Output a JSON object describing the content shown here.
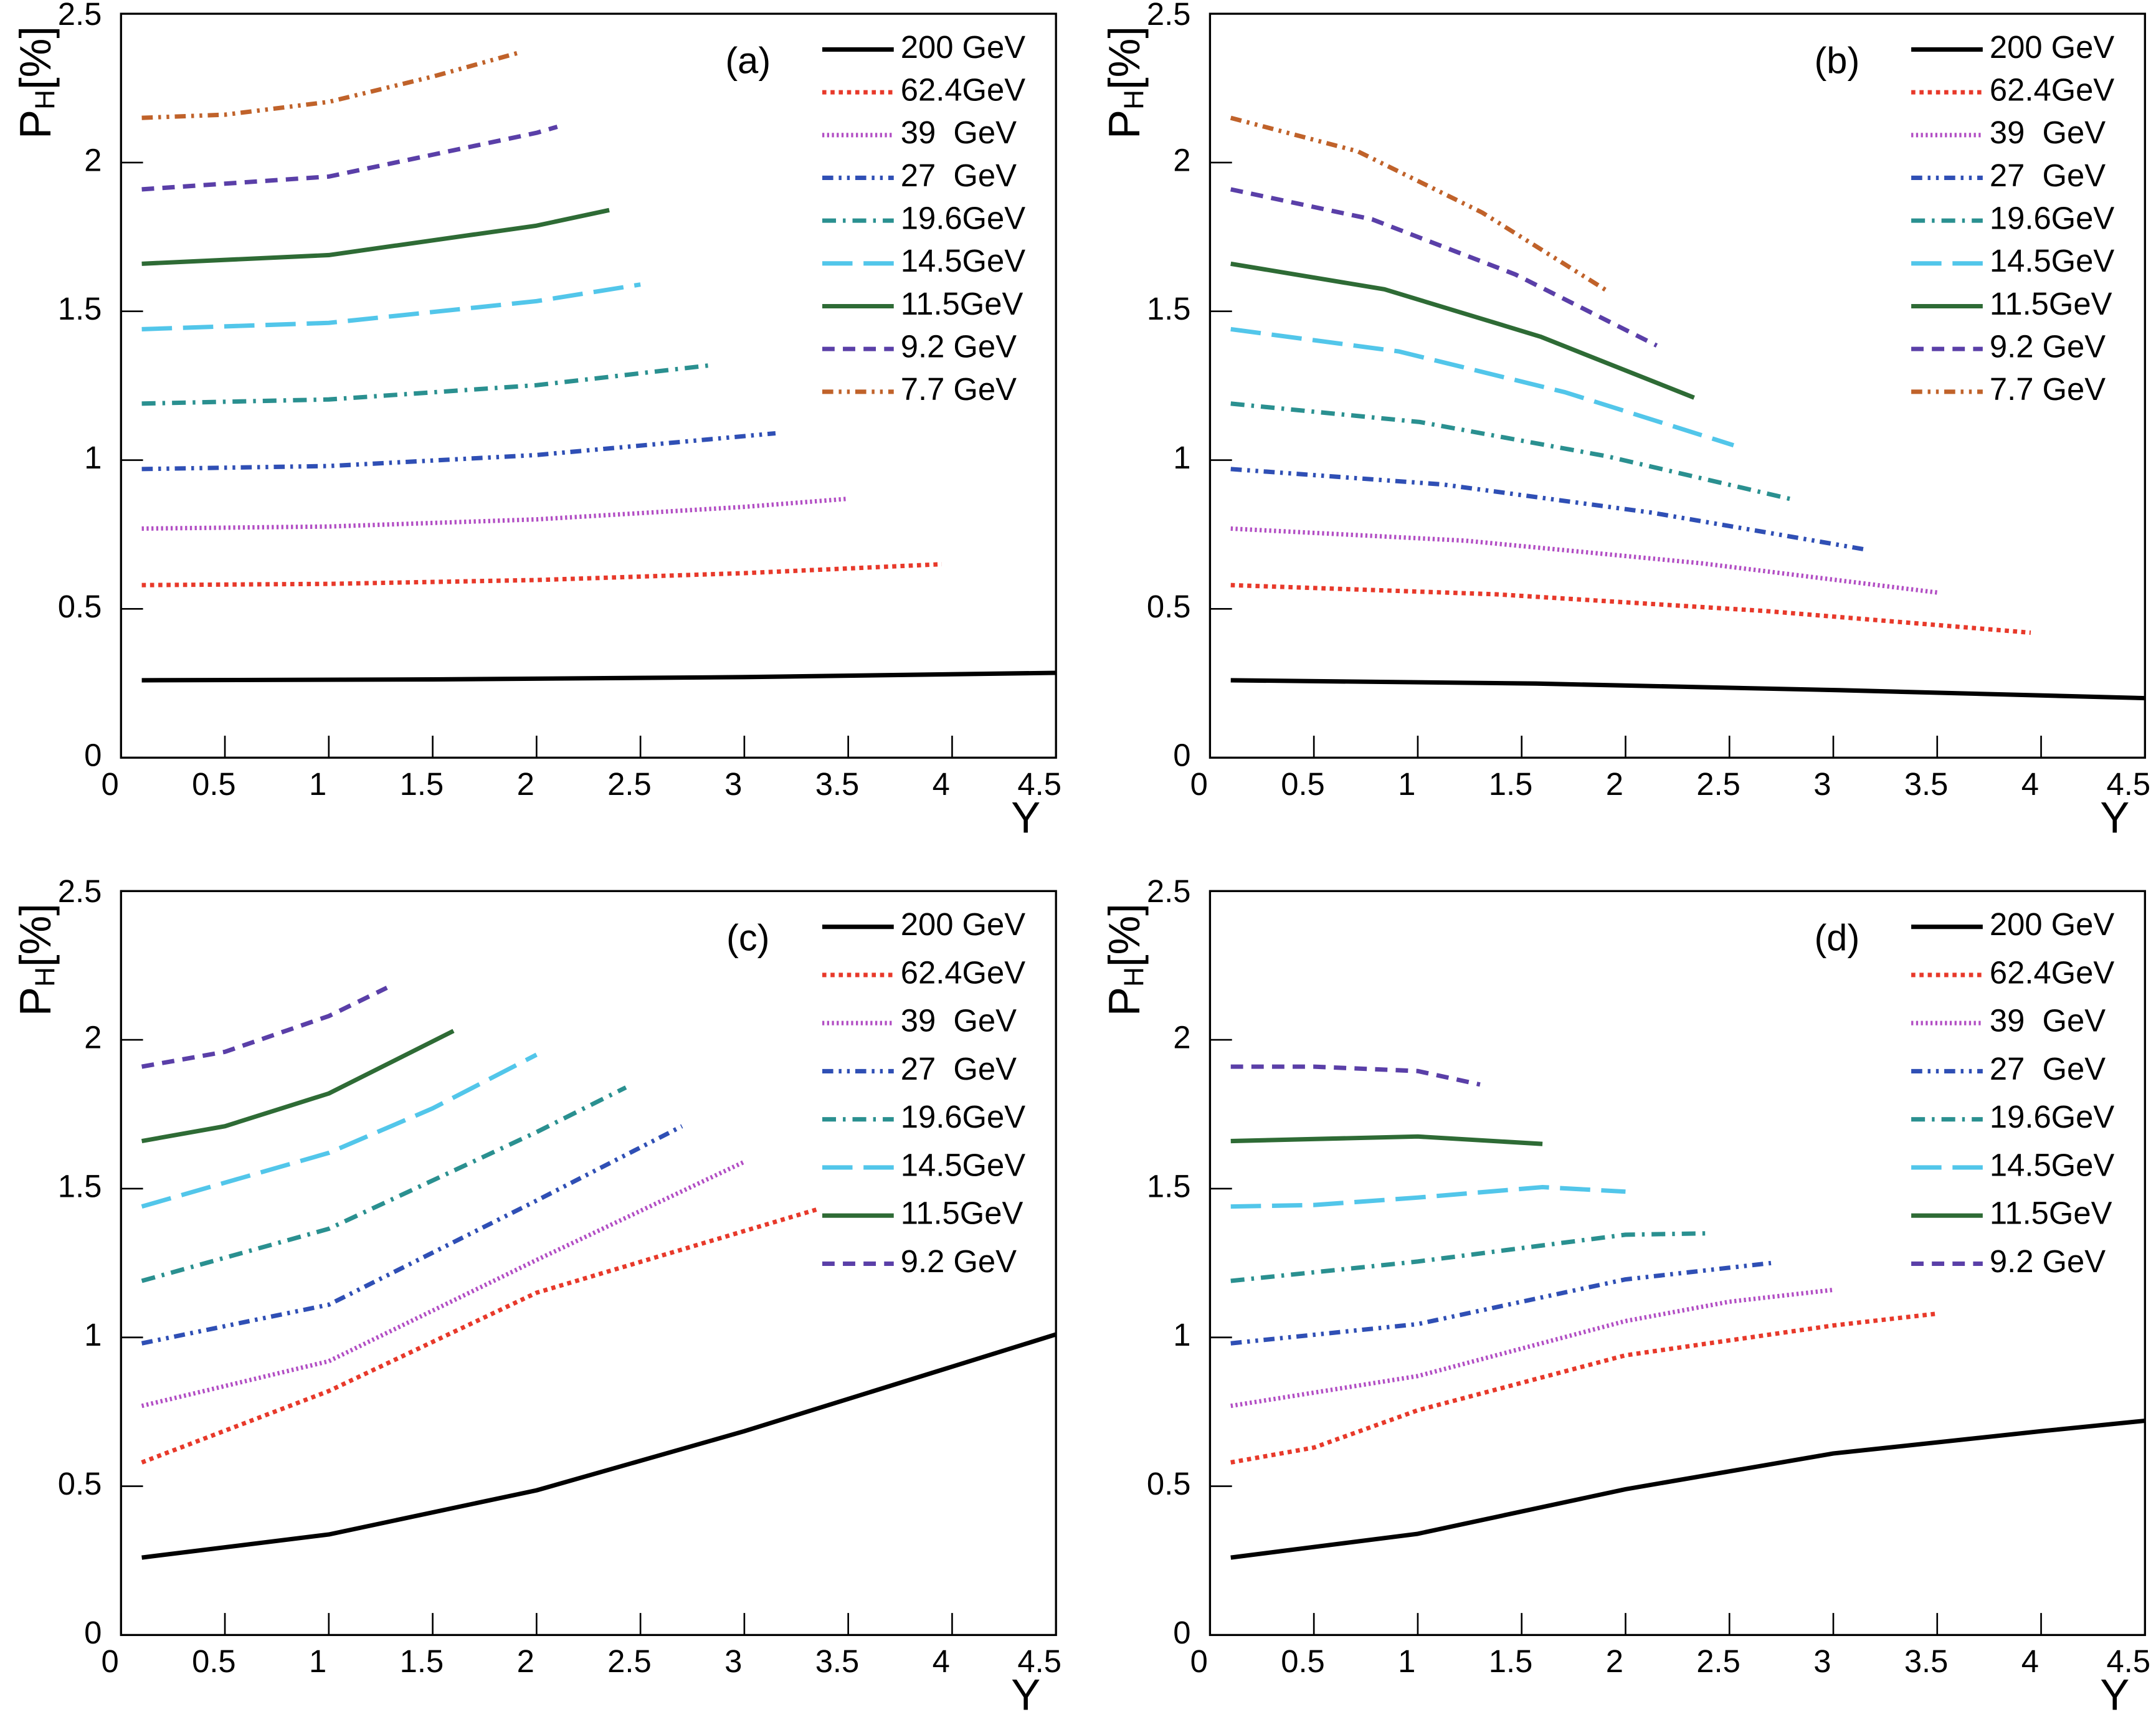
{
  "chart_data": [
    {
      "type": "line",
      "annotation": "(a)",
      "x_label": "Y",
      "y_label": {
        "main": "P",
        "sub": "H",
        "unit": "[%]"
      },
      "xlim": [
        0,
        4.5
      ],
      "ylim": [
        0,
        2.5
      ],
      "xticks": [
        0,
        0.5,
        1,
        1.5,
        2,
        2.5,
        3,
        3.5,
        4,
        4.5
      ],
      "yticks": [
        0,
        0.5,
        1,
        1.5,
        2,
        2.5
      ],
      "series": [
        {
          "name": "200 GeV",
          "color": "#000000",
          "dash": "solid",
          "x": [
            0.1,
            1.5,
            3,
            4.5
          ],
          "values": [
            0.26,
            0.263,
            0.271,
            0.285
          ]
        },
        {
          "name": "62.4GeV",
          "color": "#e8392a",
          "dash": "dotted",
          "x": [
            0.1,
            1,
            2,
            3,
            3.95
          ],
          "values": [
            0.58,
            0.584,
            0.597,
            0.62,
            0.65
          ]
        },
        {
          "name": "39  GeV",
          "color": "#b24ec4",
          "dash": "fine-dotted",
          "x": [
            0.1,
            1,
            2,
            3,
            3.5
          ],
          "values": [
            0.77,
            0.777,
            0.801,
            0.843,
            0.87
          ]
        },
        {
          "name": "27  GeV",
          "color": "#2f4fb5",
          "dash": "dash-dot-dot",
          "x": [
            0.1,
            1,
            2,
            3.15
          ],
          "values": [
            0.97,
            0.98,
            1.017,
            1.09
          ]
        },
        {
          "name": "19.6GeV",
          "color": "#2a9090",
          "dash": "dash-dot",
          "x": [
            0.1,
            1,
            2,
            2.85
          ],
          "values": [
            1.19,
            1.204,
            1.252,
            1.32
          ]
        },
        {
          "name": "14.5GeV",
          "color": "#52c6ea",
          "dash": "long-dash",
          "x": [
            0.1,
            1,
            2,
            2.5
          ],
          "values": [
            1.44,
            1.461,
            1.534,
            1.59
          ]
        },
        {
          "name": "11.5GeV",
          "color": "#2e6b35",
          "dash": "solid",
          "x": [
            0.1,
            1,
            2,
            2.35
          ],
          "values": [
            1.66,
            1.689,
            1.788,
            1.84
          ]
        },
        {
          "name": "9.2 GeV",
          "color": "#5a3fa8",
          "dash": "dashed",
          "x": [
            0.1,
            1,
            2,
            2.1
          ],
          "values": [
            1.91,
            1.953,
            2.1,
            2.12
          ]
        },
        {
          "name": "7.7 GeV",
          "color": "#c0622a",
          "dash": "dash-dot-dot",
          "x": [
            0.1,
            0.5,
            1,
            1.5,
            1.92
          ],
          "values": [
            2.15,
            2.161,
            2.204,
            2.289,
            2.37
          ]
        }
      ]
    },
    {
      "type": "line",
      "annotation": "(b)",
      "x_label": "Y",
      "y_label": {
        "main": "P",
        "sub": "H",
        "unit": "[%]"
      },
      "xlim": [
        0,
        4.5
      ],
      "ylim": [
        0,
        2.5
      ],
      "xticks": [
        0,
        0.5,
        1,
        1.5,
        2,
        2.5,
        3,
        3.5,
        4,
        4.5
      ],
      "yticks": [
        0,
        0.5,
        1,
        1.5,
        2,
        2.5
      ],
      "series": [
        {
          "name": "200 GeV",
          "color": "#000000",
          "dash": "solid",
          "x": [
            0.1,
            1.57,
            3.03,
            4.5
          ],
          "values": [
            0.26,
            0.249,
            0.227,
            0.2
          ]
        },
        {
          "name": "62.4GeV",
          "color": "#e8392a",
          "dash": "dotted",
          "x": [
            0.1,
            1.38,
            2.67,
            3.95
          ],
          "values": [
            0.58,
            0.549,
            0.493,
            0.42
          ]
        },
        {
          "name": "39  GeV",
          "color": "#b24ec4",
          "dash": "fine-dotted",
          "x": [
            0.1,
            1.23,
            2.37,
            3.5
          ],
          "values": [
            0.77,
            0.729,
            0.653,
            0.555
          ]
        },
        {
          "name": "27  GeV",
          "color": "#2f4fb5",
          "dash": "dash-dot-dot",
          "x": [
            0.1,
            1.12,
            2.13,
            3.15
          ],
          "values": [
            0.97,
            0.918,
            0.823,
            0.7
          ]
        },
        {
          "name": "19.6GeV",
          "color": "#2a9090",
          "dash": "dash-dot",
          "x": [
            0.1,
            1.01,
            1.91,
            2.82
          ],
          "values": [
            1.19,
            1.128,
            1.013,
            0.865
          ]
        },
        {
          "name": "14.5GeV",
          "color": "#52c6ea",
          "dash": "long-dash",
          "x": [
            0.1,
            0.91,
            1.71,
            2.52
          ],
          "values": [
            1.44,
            1.365,
            1.228,
            1.05
          ]
        },
        {
          "name": "11.5GeV",
          "color": "#2e6b35",
          "dash": "solid",
          "x": [
            0.1,
            0.84,
            1.59,
            2.33
          ],
          "values": [
            1.66,
            1.574,
            1.415,
            1.21
          ]
        },
        {
          "name": "9.2 GeV",
          "color": "#5a3fa8",
          "dash": "dashed",
          "x": [
            0.1,
            0.78,
            1.47,
            2.15
          ],
          "values": [
            1.91,
            1.809,
            1.624,
            1.385
          ]
        },
        {
          "name": "7.7 GeV",
          "color": "#c0622a",
          "dash": "dash-dot-dot",
          "x": [
            0.1,
            0.71,
            1.31,
            1.92
          ],
          "values": [
            2.15,
            2.038,
            1.832,
            1.565
          ]
        }
      ]
    },
    {
      "type": "line",
      "annotation": "(c)",
      "x_label": "Y",
      "y_label": {
        "main": "P",
        "sub": "H",
        "unit": "[%]"
      },
      "xlim": [
        0,
        4.5
      ],
      "ylim": [
        0,
        2.5
      ],
      "xticks": [
        0,
        0.5,
        1,
        1.5,
        2,
        2.5,
        3,
        3.5,
        4,
        4.5
      ],
      "yticks": [
        0,
        0.5,
        1,
        1.5,
        2,
        2.5
      ],
      "series": [
        {
          "name": "200 GeV",
          "color": "#000000",
          "dash": "solid",
          "x": [
            0.1,
            1,
            2,
            3,
            4.5
          ],
          "values": [
            0.26,
            0.338,
            0.486,
            0.685,
            1.01
          ]
        },
        {
          "name": "62.4GeV",
          "color": "#e8392a",
          "dash": "dotted",
          "x": [
            0.1,
            1,
            2,
            3.35
          ],
          "values": [
            0.58,
            0.82,
            1.15,
            1.43
          ]
        },
        {
          "name": "39  GeV",
          "color": "#b24ec4",
          "dash": "fine-dotted",
          "x": [
            0.1,
            1,
            2,
            3
          ],
          "values": [
            0.77,
            0.92,
            1.26,
            1.59
          ]
        },
        {
          "name": "27  GeV",
          "color": "#2f4fb5",
          "dash": "dash-dot-dot",
          "x": [
            0.1,
            1,
            2,
            2.7
          ],
          "values": [
            0.98,
            1.11,
            1.46,
            1.71
          ]
        },
        {
          "name": "19.6GeV",
          "color": "#2a9090",
          "dash": "dash-dot",
          "x": [
            0.1,
            1,
            2,
            2.43
          ],
          "values": [
            1.19,
            1.365,
            1.69,
            1.84
          ]
        },
        {
          "name": "14.5GeV",
          "color": "#52c6ea",
          "dash": "long-dash",
          "x": [
            0.1,
            1,
            1.5,
            2
          ],
          "values": [
            1.44,
            1.62,
            1.77,
            1.95
          ]
        },
        {
          "name": "11.5GeV",
          "color": "#2e6b35",
          "dash": "solid",
          "x": [
            0.1,
            0.5,
            1,
            1.6
          ],
          "values": [
            1.66,
            1.71,
            1.82,
            2.03
          ]
        },
        {
          "name": "9.2 GeV",
          "color": "#5a3fa8",
          "dash": "dashed",
          "x": [
            0.1,
            0.5,
            1,
            1.28
          ],
          "values": [
            1.91,
            1.96,
            2.08,
            2.175
          ]
        }
      ]
    },
    {
      "type": "line",
      "annotation": "(d)",
      "x_label": "Y",
      "y_label": {
        "main": "P",
        "sub": "H",
        "unit": "[%]"
      },
      "xlim": [
        0,
        4.5
      ],
      "ylim": [
        0,
        2.5
      ],
      "xticks": [
        0,
        0.5,
        1,
        1.5,
        2,
        2.5,
        3,
        3.5,
        4,
        4.5
      ],
      "yticks": [
        0,
        0.5,
        1,
        1.5,
        2,
        2.5
      ],
      "series": [
        {
          "name": "200 GeV",
          "color": "#000000",
          "dash": "solid",
          "x": [
            0.1,
            1,
            2,
            3,
            4,
            4.5
          ],
          "values": [
            0.26,
            0.34,
            0.49,
            0.61,
            0.685,
            0.72
          ]
        },
        {
          "name": "62.4GeV",
          "color": "#e8392a",
          "dash": "dotted",
          "x": [
            0.1,
            0.5,
            1,
            2,
            3,
            3.5
          ],
          "values": [
            0.58,
            0.63,
            0.755,
            0.94,
            1.04,
            1.08
          ]
        },
        {
          "name": "39  GeV",
          "color": "#b24ec4",
          "dash": "fine-dotted",
          "x": [
            0.1,
            1,
            2,
            2.5,
            3
          ],
          "values": [
            0.77,
            0.87,
            1.055,
            1.12,
            1.16
          ]
        },
        {
          "name": "27  GeV",
          "color": "#2f4fb5",
          "dash": "dash-dot-dot",
          "x": [
            0.1,
            1,
            2,
            2.7
          ],
          "values": [
            0.98,
            1.045,
            1.195,
            1.25
          ]
        },
        {
          "name": "19.6GeV",
          "color": "#2a9090",
          "dash": "dash-dot",
          "x": [
            0.1,
            1,
            2,
            2.4
          ],
          "values": [
            1.19,
            1.255,
            1.345,
            1.35
          ]
        },
        {
          "name": "14.5GeV",
          "color": "#52c6ea",
          "dash": "long-dash",
          "x": [
            0.1,
            0.5,
            1,
            1.6,
            2
          ],
          "values": [
            1.44,
            1.445,
            1.47,
            1.505,
            1.49
          ]
        },
        {
          "name": "11.5GeV",
          "color": "#2e6b35",
          "dash": "solid",
          "x": [
            0.1,
            1,
            1.6
          ],
          "values": [
            1.66,
            1.675,
            1.65
          ]
        },
        {
          "name": "9.2 GeV",
          "color": "#5a3fa8",
          "dash": "dashed",
          "x": [
            0.1,
            0.5,
            1,
            1.3
          ],
          "values": [
            1.91,
            1.91,
            1.895,
            1.85
          ]
        }
      ]
    }
  ]
}
